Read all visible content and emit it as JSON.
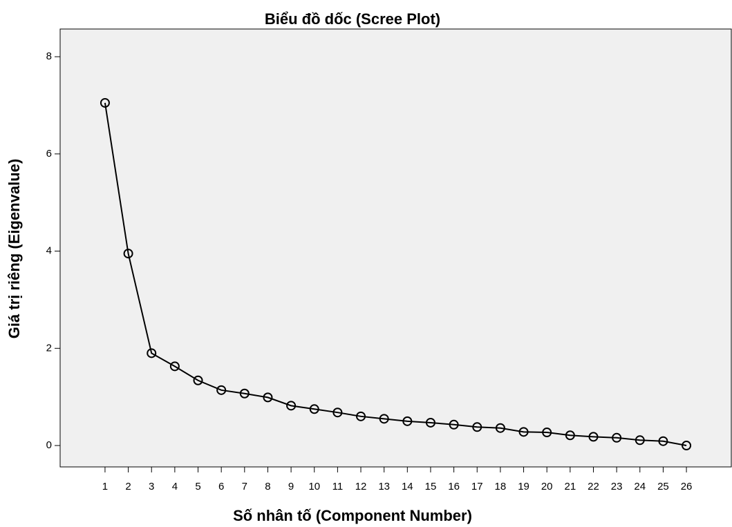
{
  "chart_data": {
    "type": "line",
    "title": "Biểu đồ dốc (Scree Plot)",
    "x_label": "Số nhân tố (Component Number)",
    "y_label": "Giá trị riêng (Eigenvalue)",
    "x": [
      1,
      2,
      3,
      4,
      5,
      6,
      7,
      8,
      9,
      10,
      11,
      12,
      13,
      14,
      15,
      16,
      17,
      18,
      19,
      20,
      21,
      22,
      23,
      24,
      25,
      26
    ],
    "series": [
      {
        "color": "#000000",
        "values": [
          7.05,
          3.95,
          1.9,
          1.63,
          1.34,
          1.14,
          1.07,
          0.99,
          0.82,
          0.75,
          0.68,
          0.6,
          0.55,
          0.5,
          0.47,
          0.43,
          0.38,
          0.36,
          0.28,
          0.27,
          0.21,
          0.18,
          0.16,
          0.11,
          0.09,
          0.0
        ]
      }
    ],
    "xlim": [
      -0.93,
      27.93
    ],
    "xticks": [
      1,
      2,
      3,
      4,
      5,
      6,
      7,
      8,
      9,
      10,
      11,
      12,
      13,
      14,
      15,
      16,
      17,
      18,
      19,
      20,
      21,
      22,
      23,
      24,
      25,
      26
    ],
    "ylim": [
      -0.44,
      8.57
    ],
    "yticks": [
      0,
      2,
      4,
      6,
      8
    ],
    "background": "#f0f0f0",
    "markers": "open-circle"
  }
}
